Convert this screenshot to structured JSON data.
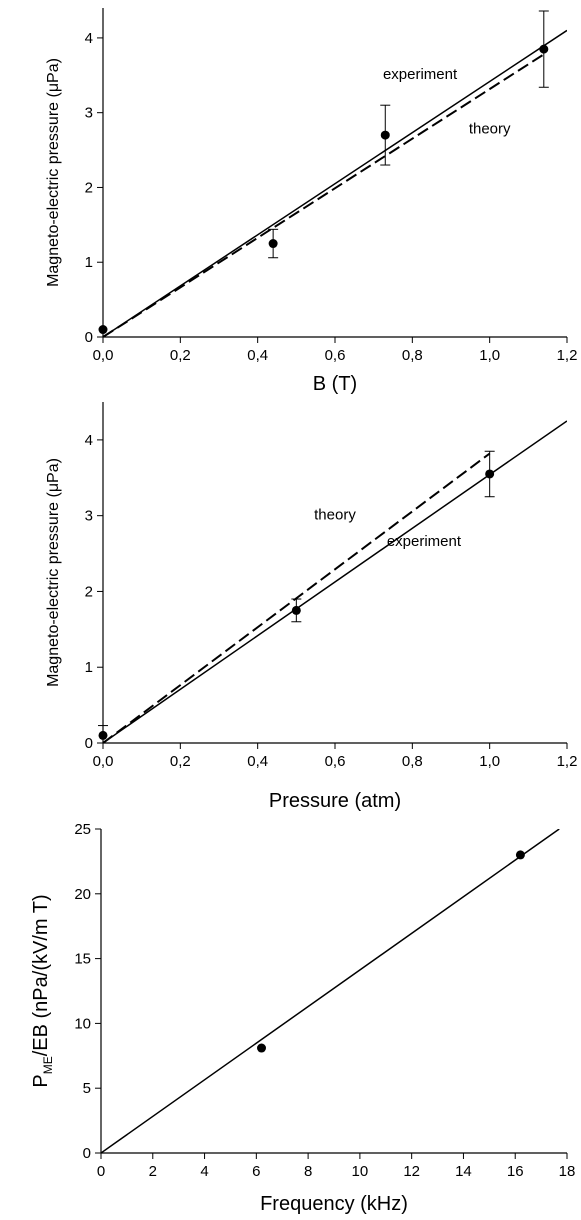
{
  "chart_data": [
    {
      "type": "scatter",
      "xlabel": "B (T)",
      "ylabel": "Magneto-electric pressure (μPa)",
      "xlim": [
        0,
        1.2
      ],
      "ylim": [
        0,
        4.4
      ],
      "xticks": [
        0,
        0.2,
        0.4,
        0.6,
        0.8,
        1.0,
        1.2
      ],
      "xtick_labels": [
        "0,0",
        "0,2",
        "0,4",
        "0,6",
        "0,8",
        "1,0",
        "1,2"
      ],
      "yticks": [
        0,
        1,
        2,
        3,
        4
      ],
      "ytick_labels": [
        "0",
        "1",
        "2",
        "3",
        "4"
      ],
      "points": {
        "x": [
          0.0,
          0.44,
          0.73,
          1.14
        ],
        "y": [
          0.1,
          1.25,
          2.7,
          3.85
        ],
        "error": [
          0,
          0.19,
          0.4,
          0.51
        ]
      },
      "lines": [
        {
          "label": "experiment",
          "style": "solid",
          "x": [
            0,
            1.2
          ],
          "y": [
            0,
            4.1
          ]
        },
        {
          "label": "theory",
          "style": "dashed",
          "x": [
            0,
            1.14
          ],
          "y": [
            0,
            3.78
          ]
        }
      ],
      "annotations": [
        {
          "text": "experiment",
          "x": 0.82,
          "y": 3.45
        },
        {
          "text": "theory",
          "x": 1.0,
          "y": 2.72
        }
      ],
      "grid": false
    },
    {
      "type": "scatter",
      "xlabel": "Pressure (atm)",
      "ylabel": "Magneto-electric pressure (μPa)",
      "xlim": [
        0,
        1.2
      ],
      "ylim": [
        0,
        4.5
      ],
      "xticks": [
        0,
        0.2,
        0.4,
        0.6,
        0.8,
        1.0,
        1.2
      ],
      "xtick_labels": [
        "0,0",
        "0,2",
        "0,4",
        "0,6",
        "0,8",
        "1,0",
        "1,2"
      ],
      "yticks": [
        0,
        1,
        2,
        3,
        4
      ],
      "ytick_labels": [
        "0",
        "1",
        "2",
        "3",
        "4"
      ],
      "points": {
        "x": [
          0.0,
          0.5,
          1.0
        ],
        "y": [
          0.1,
          1.75,
          3.55
        ],
        "error": [
          0.13,
          0.15,
          0.3
        ]
      },
      "lines": [
        {
          "label": "experiment",
          "style": "solid",
          "x": [
            0,
            1.2
          ],
          "y": [
            0,
            4.25
          ]
        },
        {
          "label": "theory",
          "style": "dashed",
          "x": [
            0,
            1.0
          ],
          "y": [
            0,
            3.82
          ]
        }
      ],
      "annotations": [
        {
          "text": "theory",
          "x": 0.6,
          "y": 2.95
        },
        {
          "text": "experiment",
          "x": 0.83,
          "y": 2.6
        }
      ],
      "grid": false
    },
    {
      "type": "scatter",
      "xlabel": "Frequency (kHz)",
      "ylabel_parts": {
        "main": "P",
        "sub": "ME",
        "rest": "/EB (nPa/(kV/m T)"
      },
      "xlim": [
        0,
        18
      ],
      "ylim": [
        0,
        25
      ],
      "xticks": [
        0,
        2,
        4,
        6,
        8,
        10,
        12,
        14,
        16,
        18
      ],
      "xtick_labels": [
        "0",
        "2",
        "4",
        "6",
        "8",
        "10",
        "12",
        "14",
        "16",
        "18"
      ],
      "yticks": [
        0,
        5,
        10,
        15,
        20,
        25
      ],
      "ytick_labels": [
        "0",
        "5",
        "10",
        "15",
        "20",
        "25"
      ],
      "points": {
        "x": [
          6.2,
          16.2
        ],
        "y": [
          8.1,
          23.0
        ],
        "error": [
          0,
          0
        ]
      },
      "lines": [
        {
          "label": "",
          "style": "solid",
          "x": [
            0,
            17.7
          ],
          "y": [
            0,
            25
          ]
        }
      ],
      "annotations": [],
      "grid": false
    }
  ]
}
